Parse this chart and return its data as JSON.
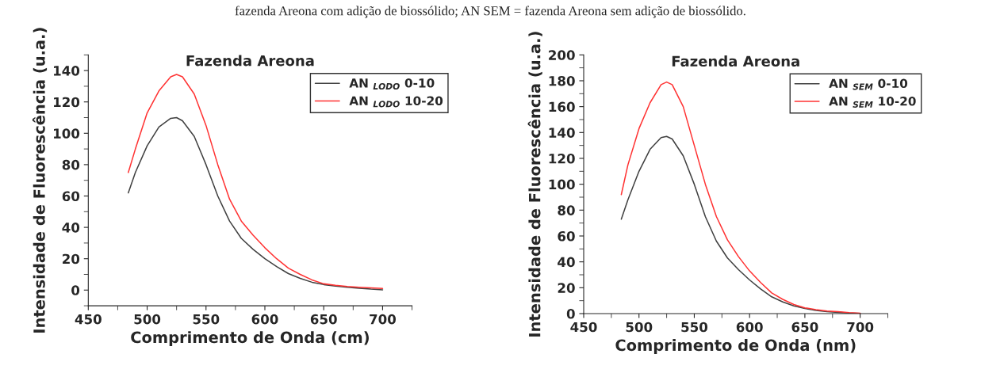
{
  "chart_data": [
    {
      "type": "line",
      "title": "Fazenda Areona",
      "xlabel": "Comprimento de Onda (cm)",
      "ylabel": "Intensidade de Fluorescência (u.a.)",
      "annotations": [
        "fazenda Areona com adição de biossólido; AN SEM = fazenda Areona sem adição de biossólido."
      ],
      "x": [
        484,
        490,
        500,
        510,
        520,
        525,
        530,
        540,
        550,
        560,
        570,
        580,
        590,
        600,
        610,
        620,
        630,
        640,
        650,
        660,
        670,
        680,
        690,
        700
      ],
      "series": [
        {
          "name": "AN $_{LODO}$ 0-10",
          "color": "#404040",
          "values": [
            62,
            75,
            92,
            104,
            109.5,
            110,
            108,
            98,
            80,
            60,
            44,
            33,
            26,
            20,
            15,
            10.5,
            7.5,
            5,
            3.5,
            2.5,
            1.8,
            1.2,
            0.6,
            0.2
          ]
        },
        {
          "name": "AN $_{LODO}$ 10-20",
          "color": "#ff3333",
          "values": [
            75,
            90,
            113,
            127,
            136,
            137.5,
            136,
            125,
            105,
            80,
            58,
            44,
            35,
            27,
            20,
            14,
            10,
            6.5,
            4,
            3,
            2.3,
            1.8,
            1.4,
            1
          ]
        }
      ],
      "xlim": [
        450,
        725
      ],
      "xticks": [
        450,
        500,
        550,
        600,
        650,
        700
      ],
      "ylim": [
        -10,
        150
      ],
      "yticks": [
        0,
        20,
        40,
        60,
        80,
        100,
        120,
        140
      ],
      "legend": "top right",
      "grid": false
    },
    {
      "type": "line",
      "title": "Fazenda Areona",
      "xlabel": "Comprimento de Onda (nm)",
      "ylabel": "Intensidade de Fluorescência (u.a.)",
      "x": [
        484,
        490,
        500,
        510,
        520,
        525,
        530,
        540,
        550,
        560,
        570,
        580,
        590,
        600,
        610,
        620,
        630,
        640,
        650,
        660,
        670,
        680,
        690,
        700
      ],
      "series": [
        {
          "name": "AN $_{SEM}$ 0-10",
          "color": "#404040",
          "values": [
            73,
            88,
            110,
            127,
            136,
            137,
            135,
            122,
            100,
            75,
            56,
            43,
            34,
            26,
            19,
            13,
            9,
            6,
            4,
            2.5,
            1.5,
            1,
            0.5,
            0.2
          ]
        },
        {
          "name": "AN $_{SEM}$ 10-20",
          "color": "#ff3333",
          "values": [
            92,
            115,
            143,
            163,
            177,
            179,
            177,
            160,
            130,
            100,
            75,
            57,
            44,
            33,
            24,
            16,
            11,
            7,
            4.5,
            3,
            2,
            1.5,
            0.8,
            0.3
          ]
        }
      ],
      "xlim": [
        450,
        725
      ],
      "xticks": [
        450,
        500,
        550,
        600,
        650,
        700
      ],
      "ylim": [
        0,
        200
      ],
      "yticks": [
        0,
        20,
        40,
        60,
        80,
        100,
        120,
        140,
        160,
        180,
        200
      ],
      "legend": "top right",
      "grid": false
    }
  ]
}
